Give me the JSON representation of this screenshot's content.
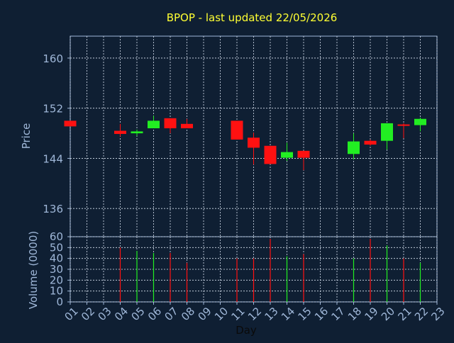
{
  "colors": {
    "background": "#0f1f33",
    "axis": "#9fb7d8",
    "grid": "#d8e2f0",
    "title": "#ffff33",
    "up": "#22ee22",
    "down": "#ff1111",
    "label": "#9fb7d8",
    "xlabel": "#0a0a0a"
  },
  "chart_data": [
    {
      "type": "candlestick",
      "title": "BPOP - last updated 22/05/2026",
      "ylabel": "Price",
      "xlabel": "Day",
      "ylim": [
        131.5,
        163.5
      ],
      "yticks": [
        136,
        144,
        152,
        160
      ],
      "grid": true,
      "x_categories": [
        "01",
        "02",
        "03",
        "04",
        "05",
        "06",
        "07",
        "08",
        "09",
        "10",
        "11",
        "12",
        "13",
        "14",
        "15",
        "16",
        "17",
        "18",
        "19",
        "20",
        "21",
        "22",
        "23"
      ],
      "candles": [
        {
          "day": "01",
          "open": 150.0,
          "high": 150.0,
          "low": 149.1,
          "close": 149.1
        },
        {
          "day": "04",
          "open": 148.4,
          "high": 149.5,
          "low": 147.5,
          "close": 147.9
        },
        {
          "day": "05",
          "open": 148.0,
          "high": 148.6,
          "low": 147.6,
          "close": 148.3
        },
        {
          "day": "06",
          "open": 148.8,
          "high": 150.8,
          "low": 148.8,
          "close": 150.0
        },
        {
          "day": "07",
          "open": 150.4,
          "high": 150.4,
          "low": 148.0,
          "close": 148.8
        },
        {
          "day": "08",
          "open": 149.5,
          "high": 150.3,
          "low": 148.8,
          "close": 148.8
        },
        {
          "day": "11",
          "open": 150.0,
          "high": 150.0,
          "low": 147.0,
          "close": 147.0
        },
        {
          "day": "12",
          "open": 147.3,
          "high": 148.1,
          "low": 143.0,
          "close": 145.7
        },
        {
          "day": "13",
          "open": 146.0,
          "high": 146.0,
          "low": 143.1,
          "close": 143.1
        },
        {
          "day": "14",
          "open": 144.1,
          "high": 146.5,
          "low": 143.6,
          "close": 145.0
        },
        {
          "day": "15",
          "open": 145.2,
          "high": 145.2,
          "low": 142.1,
          "close": 144.1
        },
        {
          "day": "18",
          "open": 144.7,
          "high": 148.0,
          "low": 143.8,
          "close": 146.7
        },
        {
          "day": "19",
          "open": 146.8,
          "high": 147.0,
          "low": 146.0,
          "close": 146.2
        },
        {
          "day": "20",
          "open": 146.8,
          "high": 149.6,
          "low": 145.4,
          "close": 149.6
        },
        {
          "day": "21",
          "open": 149.4,
          "high": 149.6,
          "low": 147.2,
          "close": 149.2
        },
        {
          "day": "22",
          "open": 149.3,
          "high": 150.5,
          "low": 148.3,
          "close": 150.3
        }
      ]
    },
    {
      "type": "bar",
      "ylabel": "Volume (0000)",
      "xlabel": "Day",
      "ylim": [
        0,
        60
      ],
      "yticks": [
        0,
        10,
        20,
        30,
        40,
        50,
        60
      ],
      "grid": true,
      "x_categories": [
        "01",
        "02",
        "03",
        "04",
        "05",
        "06",
        "07",
        "08",
        "09",
        "10",
        "11",
        "12",
        "13",
        "14",
        "15",
        "16",
        "17",
        "18",
        "19",
        "20",
        "21",
        "22",
        "23"
      ],
      "bars": [
        {
          "day": "04",
          "value": 50,
          "direction": "down"
        },
        {
          "day": "05",
          "value": 47,
          "direction": "up"
        },
        {
          "day": "06",
          "value": 45,
          "direction": "up"
        },
        {
          "day": "07",
          "value": 45,
          "direction": "down"
        },
        {
          "day": "08",
          "value": 36,
          "direction": "down"
        },
        {
          "day": "11",
          "value": 40,
          "direction": "down"
        },
        {
          "day": "12",
          "value": 40,
          "direction": "down"
        },
        {
          "day": "13",
          "value": 58,
          "direction": "down"
        },
        {
          "day": "14",
          "value": 42,
          "direction": "up"
        },
        {
          "day": "15",
          "value": 44,
          "direction": "down"
        },
        {
          "day": "18",
          "value": 40,
          "direction": "up"
        },
        {
          "day": "19",
          "value": 58,
          "direction": "down"
        },
        {
          "day": "20",
          "value": 52,
          "direction": "up"
        },
        {
          "day": "21",
          "value": 40,
          "direction": "down"
        },
        {
          "day": "22",
          "value": 36,
          "direction": "up"
        }
      ]
    }
  ]
}
